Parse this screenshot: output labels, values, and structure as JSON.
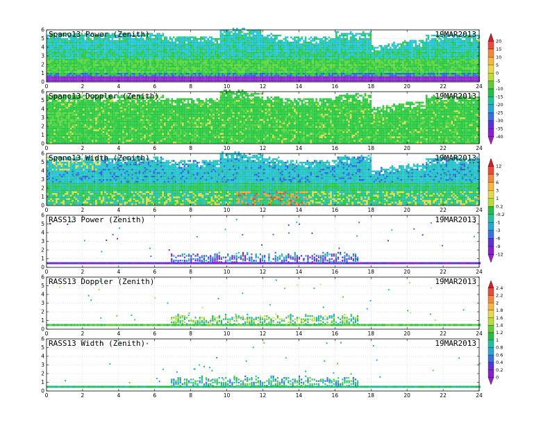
{
  "chart_data": [
    {
      "type": "heatmap",
      "title": "Spano13 Power (Zenith)",
      "date": "19MAR2013",
      "xlim": [
        0,
        24
      ],
      "ylim": [
        0,
        6
      ],
      "xticks": [
        "0",
        "2",
        "4",
        "6",
        "8",
        "10",
        "12",
        "14",
        "16",
        "18",
        "20",
        "22",
        "24"
      ],
      "yticks": [
        "0",
        "1",
        "2",
        "3",
        "4",
        "5",
        "6"
      ],
      "mode": "dense",
      "colorbar": "power"
    },
    {
      "type": "heatmap",
      "title": "Spano13 Doppler (Zenith)",
      "date": "19MAR2013",
      "xlim": [
        0,
        24
      ],
      "ylim": [
        0,
        6
      ],
      "xticks": [
        "0",
        "2",
        "4",
        "6",
        "8",
        "10",
        "12",
        "14",
        "16",
        "18",
        "20",
        "22",
        "24"
      ],
      "yticks": [
        "0",
        "1",
        "2",
        "3",
        "4",
        "5",
        "6"
      ],
      "mode": "dense",
      "colorbar": "power"
    },
    {
      "type": "heatmap",
      "title": "Spano13 Width (Zenith)",
      "date": "19MAR2013",
      "xlim": [
        0,
        24
      ],
      "ylim": [
        0,
        6
      ],
      "xticks": [
        "0",
        "2",
        "4",
        "6",
        "8",
        "10",
        "12",
        "14",
        "16",
        "18",
        "20",
        "22",
        "24"
      ],
      "yticks": [
        "0",
        "1",
        "2",
        "3",
        "4",
        "5",
        "6"
      ],
      "mode": "dense",
      "colorbar": "doppler"
    },
    {
      "type": "scatter",
      "title": "RASS13 Power (Zenith)",
      "date": "19MAR2013",
      "xlim": [
        0,
        24
      ],
      "ylim": [
        0,
        6
      ],
      "xticks": [
        "0",
        "2",
        "4",
        "6",
        "8",
        "10",
        "12",
        "14",
        "16",
        "18",
        "20",
        "22",
        "24"
      ],
      "yticks": [
        "0",
        "1",
        "2",
        "3",
        "4",
        "5",
        "6"
      ],
      "mode": "rass",
      "colorbar": "doppler"
    },
    {
      "type": "scatter",
      "title": "RASS13 Doppler (Zenith)",
      "date": "19MAR2013",
      "xlim": [
        0,
        24
      ],
      "ylim": [
        0,
        6
      ],
      "xticks": [
        "0",
        "2",
        "4",
        "6",
        "8",
        "10",
        "12",
        "14",
        "16",
        "18",
        "20",
        "22",
        "24"
      ],
      "yticks": [
        "0",
        "1",
        "2",
        "3",
        "4",
        "5",
        "6"
      ],
      "mode": "rass",
      "colorbar": "width"
    },
    {
      "type": "scatter",
      "title": "RASS13 Width (Zenith)",
      "date": "19MAR2013",
      "xlim": [
        0,
        24
      ],
      "ylim": [
        0,
        6
      ],
      "xticks": [
        "0",
        "2",
        "4",
        "6",
        "8",
        "10",
        "12",
        "14",
        "16",
        "18",
        "20",
        "22",
        "24"
      ],
      "yticks": [
        "0",
        "1",
        "2",
        "3",
        "4",
        "5",
        "6"
      ],
      "mode": "rass",
      "colorbar": "width"
    }
  ],
  "colorbars": {
    "power": {
      "labels": [
        "20",
        "15",
        "10",
        "5",
        "0",
        "-5",
        "-10",
        "-15",
        "-20",
        "-25",
        "-30",
        "-35",
        "-40"
      ],
      "colors": [
        "#d0202a",
        "#e84b3c",
        "#f2893a",
        "#f6b640",
        "#e9d84a",
        "#b8dd3a",
        "#62cc3a",
        "#22bf4a",
        "#20c0a0",
        "#2aa6d6",
        "#3a6fe0",
        "#5a34d8",
        "#8a1fd0",
        "#a020c8"
      ]
    },
    "doppler": {
      "labels": [
        "12",
        "9",
        "6",
        "3",
        "1",
        "0.2",
        "-0.2",
        "-1",
        "-3",
        "-6",
        "-9",
        "-12"
      ],
      "colors": [
        "#d0202a",
        "#e84b3c",
        "#f2893a",
        "#f6b640",
        "#e9d84a",
        "#b8dd3a",
        "#22bf4a",
        "#20c0a0",
        "#2aa6d6",
        "#3a6fe0",
        "#5a34d8",
        "#8a1fd0",
        "#a020c8"
      ]
    },
    "width": {
      "labels": [
        "2.4",
        "2.2",
        "2",
        "1.8",
        "1.6",
        "1.4",
        "1.2",
        "1",
        "0.8",
        "0.6",
        "0.4",
        "0.2",
        "0"
      ],
      "colors": [
        "#d0202a",
        "#e84b3c",
        "#f2893a",
        "#f6b640",
        "#e9d84a",
        "#b8dd3a",
        "#62cc3a",
        "#22bf4a",
        "#20c0a0",
        "#2aa6d6",
        "#3a6fe0",
        "#5a34d8",
        "#8a1fd0",
        "#a020c8"
      ]
    }
  }
}
